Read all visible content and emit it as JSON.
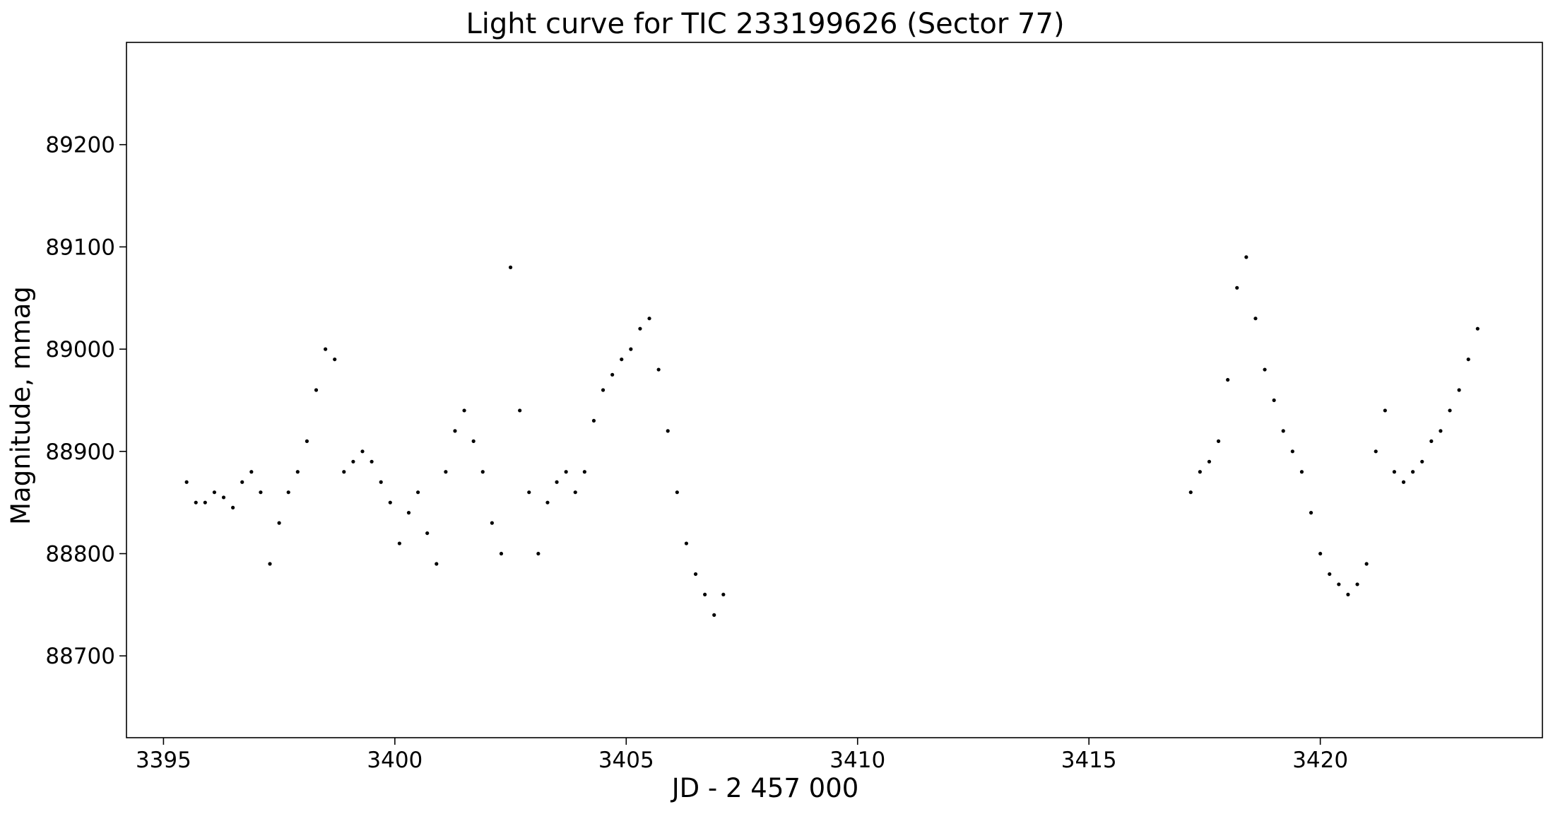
{
  "chart_data": {
    "type": "scatter",
    "title": "Light curve for TIC 233199626 (Sector 77)",
    "xlabel": "JD - 2 457 000",
    "ylabel": "Magnitude, mmag",
    "xlim": [
      3394.2,
      3424.8
    ],
    "ylim": [
      88620,
      89300
    ],
    "xticks": [
      3395,
      3400,
      3405,
      3410,
      3415,
      3420
    ],
    "yticks": [
      88700,
      88800,
      88900,
      89000,
      89100,
      89200
    ],
    "xtick_labels": [
      "3395",
      "3400",
      "3405",
      "3410",
      "3415",
      "3420"
    ],
    "ytick_labels": [
      "88700",
      "88800",
      "88900",
      "89000",
      "89100",
      "89200"
    ],
    "marker_color": "#000000",
    "grid": false,
    "legend": "none",
    "series": [
      {
        "x": [
          3395.5,
          3395.7,
          3395.9,
          3396.1,
          3396.3,
          3396.5,
          3396.7,
          3396.9,
          3397.1,
          3397.3,
          3397.5,
          3397.7,
          3397.9,
          3398.1,
          3398.3,
          3398.5,
          3398.7,
          3398.9,
          3399.1,
          3399.3,
          3399.5,
          3399.7,
          3399.9,
          3400.1,
          3400.3,
          3400.5,
          3400.7,
          3400.9,
          3401.1,
          3401.3,
          3401.5,
          3401.7,
          3401.9,
          3402.1,
          3402.3,
          3402.5,
          3402.7,
          3402.9,
          3403.1,
          3403.3,
          3403.5,
          3403.7,
          3403.9,
          3404.1,
          3404.3,
          3404.5,
          3404.7,
          3404.9,
          3405.1,
          3405.3,
          3405.5,
          3405.7,
          3405.9,
          3406.1,
          3406.3,
          3406.5,
          3406.7,
          3406.9,
          3407.1,
          3417.2,
          3417.4,
          3417.6,
          3417.8,
          3418.0,
          3418.2,
          3418.4,
          3418.6,
          3418.8,
          3419.0,
          3419.2,
          3419.4,
          3419.6,
          3419.8,
          3420.0,
          3420.2,
          3420.4,
          3420.6,
          3420.8,
          3421.0,
          3421.2,
          3421.4,
          3421.6,
          3421.8,
          3422.0,
          3422.2,
          3422.4,
          3422.6,
          3422.8,
          3423.0,
          3423.2,
          3423.4
        ],
        "y": [
          88870,
          88850,
          88850,
          88860,
          88855,
          88845,
          88870,
          88880,
          88860,
          88790,
          88830,
          88860,
          88880,
          88910,
          88960,
          89000,
          88990,
          88880,
          88890,
          88900,
          88890,
          88870,
          88850,
          88810,
          88840,
          88860,
          88820,
          88790,
          88880,
          88920,
          88940,
          88910,
          88880,
          88830,
          88800,
          89080,
          88940,
          88860,
          88800,
          88850,
          88870,
          88880,
          88860,
          88880,
          88930,
          88960,
          88975,
          88990,
          89000,
          89020,
          89030,
          88980,
          88920,
          88860,
          88810,
          88780,
          88760,
          88740,
          88760,
          88860,
          88880,
          88890,
          88910,
          88970,
          89060,
          89090,
          89030,
          88980,
          88950,
          88920,
          88900,
          88880,
          88840,
          88800,
          88780,
          88770,
          88760,
          88770,
          88790,
          88900,
          88940,
          88880,
          88870,
          88880,
          88890,
          88910,
          88920,
          88940,
          88960,
          88990,
          89020
        ]
      }
    ]
  }
}
